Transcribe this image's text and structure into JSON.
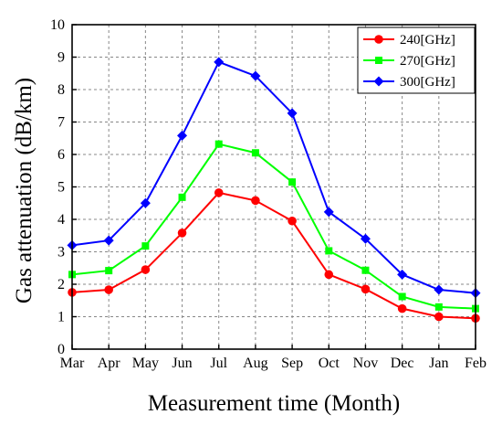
{
  "chart_data": {
    "type": "line",
    "xlabel": "Measurement time (Month)",
    "ylabel": "Gas attenuation (dB/km)",
    "categories": [
      "Mar",
      "Apr",
      "May",
      "Jun",
      "Jul",
      "Aug",
      "Sep",
      "Oct",
      "Nov",
      "Dec",
      "Jan",
      "Feb"
    ],
    "ylim": [
      0,
      10
    ],
    "yticks": [
      0,
      1,
      2,
      3,
      4,
      5,
      6,
      7,
      8,
      9,
      10
    ],
    "grid": true,
    "legend_position": "top-right",
    "series": [
      {
        "name": "240[GHz]",
        "color": "#ff0000",
        "marker": "circle",
        "values": [
          1.75,
          1.83,
          2.45,
          3.58,
          4.82,
          4.58,
          3.95,
          2.3,
          1.85,
          1.25,
          1.0,
          0.95
        ]
      },
      {
        "name": "270[GHz]",
        "color": "#00ff00",
        "marker": "square",
        "values": [
          2.3,
          2.42,
          3.18,
          4.68,
          6.32,
          6.05,
          5.15,
          3.03,
          2.43,
          1.62,
          1.3,
          1.25
        ]
      },
      {
        "name": "300[GHz]",
        "color": "#0000ff",
        "marker": "diamond",
        "values": [
          3.2,
          3.35,
          4.5,
          6.58,
          8.85,
          8.42,
          7.27,
          4.23,
          3.4,
          2.3,
          1.83,
          1.73
        ]
      }
    ]
  }
}
